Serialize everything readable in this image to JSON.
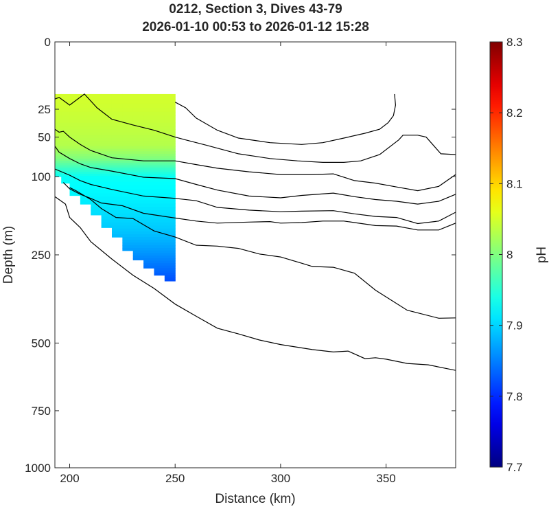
{
  "title_line1": "0212, Section 3, Dives 43-79",
  "title_line2": "2026-01-10 00:53 to 2026-01-12 15:28",
  "chart_data": {
    "type": "heatmap",
    "xlabel": "Distance (km)",
    "ylabel": "Depth (m)",
    "colorbar_label": "pH",
    "xlim": [
      193,
      383
    ],
    "ylim": [
      0,
      1000
    ],
    "y_scale": "sqrt",
    "x_ticks": [
      "200",
      "250",
      "300",
      "350"
    ],
    "y_ticks": [
      "0",
      "25",
      "50",
      "100",
      "250",
      "500",
      "750",
      "1000"
    ],
    "colorbar": {
      "min": 7.7,
      "max": 8.3,
      "colormap": "jet",
      "ticks": [
        "7.7",
        "7.8",
        "7.9",
        "8",
        "8.1",
        "8.2",
        "8.3"
      ]
    },
    "ph_field": {
      "x_range": [
        193,
        250
      ],
      "top_depth": 15,
      "profile_x": [
        193,
        196,
        200,
        205,
        210,
        215,
        220,
        225,
        230,
        235,
        240,
        245,
        250
      ],
      "bottom_depth": [
        92,
        100,
        110,
        130,
        145,
        165,
        190,
        210,
        240,
        262,
        282,
        300,
        315
      ],
      "layers": [
        {
          "depth": 15,
          "ph": 8.05
        },
        {
          "depth": 60,
          "ph": 8.03
        },
        {
          "depth": 75,
          "ph": 8.0
        },
        {
          "depth": 88,
          "ph": 7.96
        },
        {
          "depth": 100,
          "ph": 7.93
        },
        {
          "depth": 130,
          "ph": 7.92
        },
        {
          "depth": 200,
          "ph": 7.89
        },
        {
          "depth": 250,
          "ph": 7.86
        },
        {
          "depth": 315,
          "ph": 7.82
        }
      ]
    },
    "contour_lines": [
      {
        "x": [
          354,
          354.5,
          353.5,
          351,
          347,
          340,
          330,
          320,
          310,
          295,
          280,
          270,
          260,
          255,
          250
        ],
        "depth": [
          15,
          22,
          30,
          36,
          42,
          46,
          51,
          56,
          58,
          56,
          51,
          43,
          32,
          24,
          20
        ]
      },
      {
        "x": [
          383,
          376,
          369,
          365,
          358,
          356,
          347,
          338,
          330,
          320,
          308,
          295,
          280,
          265,
          255,
          250,
          240,
          230,
          220,
          213,
          207,
          200,
          195,
          193
        ],
        "depth": [
          70,
          69,
          50,
          48,
          48,
          53,
          70,
          78,
          80,
          80,
          78,
          75,
          69,
          59,
          53,
          50,
          43,
          38,
          33,
          24,
          15,
          22,
          17,
          18
        ]
      },
      {
        "x": [
          383,
          375,
          365,
          355,
          345,
          335,
          325,
          315,
          300,
          285,
          270,
          260,
          250,
          235,
          220,
          210,
          205,
          200,
          197,
          195,
          193
        ],
        "depth": [
          97,
          115,
          122,
          116,
          110,
          106,
          96,
          97,
          97,
          93,
          88,
          83,
          78,
          78,
          74,
          65,
          58,
          50,
          44,
          45,
          42
        ]
      },
      {
        "x": [
          383,
          375,
          365,
          355,
          345,
          335,
          325,
          310,
          300,
          285,
          270,
          260,
          250,
          235,
          220,
          210,
          205,
          200,
          195,
          193
        ],
        "depth": [
          128,
          140,
          145,
          140,
          137,
          132,
          126,
          130,
          134,
          131,
          121,
          112,
          103,
          101,
          92,
          87,
          82,
          75,
          67,
          60
        ]
      },
      {
        "x": [
          383,
          375,
          365,
          355,
          345,
          335,
          325,
          310,
          300,
          285,
          270,
          260,
          250,
          235,
          220,
          210,
          205,
          200,
          193
        ],
        "depth": [
          160,
          177,
          182,
          170,
          168,
          163,
          157,
          158,
          159,
          156,
          151,
          139,
          135,
          131,
          120,
          112,
          106,
          98,
          89
        ]
      },
      {
        "x": [
          383,
          375,
          365,
          355,
          345,
          335,
          330,
          320,
          310,
          300,
          295,
          285,
          270,
          260,
          250,
          235,
          225,
          215,
          210,
          205,
          200,
          197
        ],
        "depth": [
          181,
          195,
          195,
          187,
          186,
          180,
          177,
          177,
          180,
          181,
          178,
          179,
          181,
          177,
          171,
          162,
          148,
          143,
          135,
          128,
          119,
          109
        ]
      },
      {
        "x": [
          383,
          375,
          360,
          345,
          335,
          325,
          315,
          310,
          300,
          290,
          280,
          270,
          260,
          250,
          240,
          230,
          222,
          215,
          210,
          203,
          200
        ],
        "depth": [
          420,
          421,
          397,
          340,
          295,
          280,
          278,
          270,
          255,
          248,
          235,
          230,
          228,
          210,
          197,
          172,
          170,
          153,
          137,
          122,
          117
        ]
      },
      {
        "x": [
          383,
          370,
          360,
          350,
          345,
          340,
          332,
          325,
          315,
          300,
          290,
          280,
          270,
          260,
          250,
          240,
          230,
          220,
          210,
          205,
          200,
          198,
          193
        ],
        "depth": [
          595,
          575,
          570,
          555,
          550,
          553,
          527,
          530,
          522,
          505,
          490,
          470,
          452,
          415,
          379,
          335,
          300,
          260,
          220,
          190,
          170,
          145,
          132
        ]
      }
    ]
  }
}
